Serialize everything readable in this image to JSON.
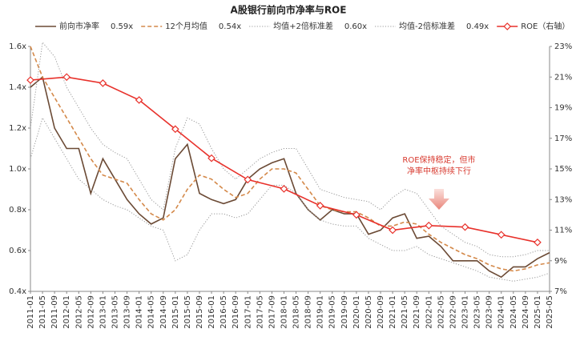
{
  "chart_data": {
    "type": "line",
    "title": "A股银行前向市净率与ROE",
    "categories": [
      "2011-01",
      "2011-05",
      "2011-09",
      "2012-01",
      "2012-05",
      "2012-09",
      "2013-01",
      "2013-05",
      "2013-09",
      "2014-01",
      "2014-05",
      "2014-09",
      "2015-01",
      "2015-05",
      "2015-09",
      "2016-01",
      "2016-05",
      "2016-09",
      "2017-01",
      "2017-05",
      "2017-09",
      "2018-01",
      "2018-05",
      "2018-09",
      "2019-01",
      "2019-05",
      "2019-09",
      "2020-01",
      "2020-05",
      "2020-09",
      "2021-01",
      "2021-05",
      "2021-09",
      "2022-01",
      "2022-05",
      "2022-09",
      "2023-01",
      "2023-05",
      "2023-09",
      "2024-01",
      "2024-05",
      "2024-09",
      "2025-01",
      "2025-05"
    ],
    "series": [
      {
        "name": "前向市净率",
        "latest_label": "0.59x",
        "color": "#6b4a35",
        "style": "solid",
        "values": [
          1.4,
          1.45,
          1.2,
          1.1,
          1.1,
          0.88,
          1.05,
          0.95,
          0.85,
          0.78,
          0.73,
          0.76,
          1.05,
          1.12,
          0.88,
          0.85,
          0.83,
          0.85,
          0.95,
          1.0,
          1.03,
          1.05,
          0.88,
          0.8,
          0.75,
          0.8,
          0.78,
          0.78,
          0.68,
          0.7,
          0.76,
          0.78,
          0.66,
          0.67,
          0.62,
          0.55,
          0.55,
          0.55,
          0.5,
          0.47,
          0.52,
          0.52,
          0.56,
          0.59
        ]
      },
      {
        "name": "12个月均值",
        "latest_label": "0.54x",
        "color": "#d4894a",
        "style": "dashed",
        "values": [
          1.6,
          1.45,
          1.35,
          1.25,
          1.15,
          1.05,
          0.97,
          0.95,
          0.93,
          0.85,
          0.78,
          0.75,
          0.8,
          0.9,
          0.97,
          0.95,
          0.9,
          0.86,
          0.88,
          0.95,
          1.0,
          1.0,
          0.98,
          0.9,
          0.82,
          0.8,
          0.79,
          0.79,
          0.76,
          0.72,
          0.72,
          0.74,
          0.73,
          0.68,
          0.64,
          0.61,
          0.58,
          0.56,
          0.53,
          0.51,
          0.5,
          0.51,
          0.53,
          0.54
        ]
      },
      {
        "name": "均值+2倍标准差",
        "latest_label": "0.60x",
        "color": "#9a9a9a",
        "style": "dotted",
        "values": [
          1.2,
          1.62,
          1.55,
          1.4,
          1.3,
          1.2,
          1.12,
          1.08,
          1.05,
          0.95,
          0.85,
          0.8,
          1.1,
          1.25,
          1.22,
          1.1,
          1.0,
          0.95,
          1.0,
          1.05,
          1.08,
          1.1,
          1.1,
          1.0,
          0.9,
          0.88,
          0.86,
          0.85,
          0.84,
          0.8,
          0.86,
          0.9,
          0.88,
          0.8,
          0.72,
          0.68,
          0.64,
          0.62,
          0.58,
          0.57,
          0.57,
          0.58,
          0.6,
          0.6
        ]
      },
      {
        "name": "均值-2倍标准差",
        "latest_label": "0.49x",
        "color": "#9a9a9a",
        "style": "dotted",
        "values": [
          1.05,
          1.25,
          1.15,
          1.05,
          0.95,
          0.9,
          0.85,
          0.82,
          0.8,
          0.76,
          0.72,
          0.7,
          0.55,
          0.58,
          0.7,
          0.78,
          0.78,
          0.76,
          0.78,
          0.85,
          0.92,
          0.92,
          0.88,
          0.8,
          0.75,
          0.73,
          0.72,
          0.72,
          0.66,
          0.63,
          0.6,
          0.6,
          0.62,
          0.58,
          0.56,
          0.54,
          0.52,
          0.5,
          0.47,
          0.46,
          0.45,
          0.46,
          0.47,
          0.49
        ]
      },
      {
        "name": "ROE（右轴）",
        "color": "#e8312b",
        "style": "solid",
        "marker": "diamond",
        "axis": "y2",
        "x": [
          "2011-01",
          "2012-01",
          "2013-01",
          "2014-01",
          "2015-01",
          "2016-01",
          "2017-01",
          "2018-01",
          "2019-01",
          "2020-01",
          "2021-01",
          "2022-01",
          "2023-01",
          "2024-01",
          "2025-01"
        ],
        "values": [
          20.8,
          21.0,
          20.6,
          19.5,
          17.6,
          15.7,
          14.3,
          13.7,
          12.6,
          12.0,
          11.0,
          11.3,
          11.2,
          10.7,
          10.2
        ]
      }
    ],
    "ylim": [
      0.4,
      1.6
    ],
    "yticks": [
      {
        "value": 0.4,
        "label": "0.4x"
      },
      {
        "value": 0.6,
        "label": "0.6x"
      },
      {
        "value": 0.8,
        "label": "0.8x"
      },
      {
        "value": 1.0,
        "label": "1.0x"
      },
      {
        "value": 1.2,
        "label": "1.2x"
      },
      {
        "value": 1.4,
        "label": "1.4x"
      },
      {
        "value": 1.6,
        "label": "1.6x"
      }
    ],
    "y2lim": [
      7,
      23
    ],
    "y2ticks": [
      {
        "value": 7,
        "label": "7%"
      },
      {
        "value": 9,
        "label": "9%"
      },
      {
        "value": 11,
        "label": "11%"
      },
      {
        "value": 13,
        "label": "13%"
      },
      {
        "value": 15,
        "label": "15%"
      },
      {
        "value": 17,
        "label": "17%"
      },
      {
        "value": 19,
        "label": "19%"
      },
      {
        "value": 21,
        "label": "21%"
      },
      {
        "value": 23,
        "label": "23%"
      }
    ],
    "annotation": [
      "ROE保持稳定，但市",
      "净率中枢持续下行"
    ]
  }
}
